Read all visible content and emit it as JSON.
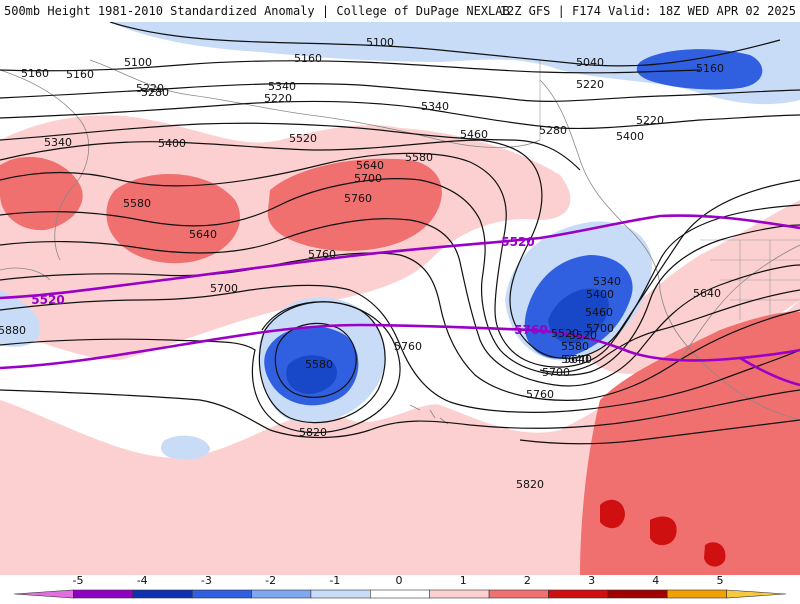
{
  "header": {
    "left_text": "500mb Height 1981-2010 Standardized Anomaly | College of DuPage NEXLAB",
    "right_text": "12Z GFS | F174 Valid: 18Z WED APR 02 2025"
  },
  "colorbar": {
    "ticks": [
      "-5",
      "-4",
      "-3",
      "-2",
      "-1",
      "0",
      "1",
      "2",
      "3",
      "4",
      "5"
    ],
    "colors": [
      "#e070e0",
      "#9000c0",
      "#1030b0",
      "#3060e0",
      "#80a8f0",
      "#c8dcf8",
      "#ffffff",
      "#fcd0d0",
      "#f07070",
      "#d01010",
      "#a00000",
      "#f0a000",
      "#f8c840"
    ]
  },
  "contour_labels": [
    "5100",
    "5160",
    "5160",
    "5100",
    "5040",
    "5160",
    "5220",
    "5280",
    "5340",
    "5220",
    "5340",
    "5220",
    "5280",
    "5400",
    "5460",
    "5340",
    "5400",
    "5520",
    "5580",
    "5640",
    "5700",
    "5760",
    "5580",
    "5640",
    "5700",
    "5760",
    "5640",
    "5520",
    "5340",
    "5400",
    "5460",
    "5520",
    "5580",
    "5640",
    "5700",
    "5760",
    "5820",
    "5820",
    "5880",
    "5580",
    "5640",
    "5760",
    "5700",
    "5160",
    "5220"
  ],
  "thick_contour_labels": [
    "5520",
    "5520",
    "5760"
  ],
  "colors": {
    "thick_contour": "#9a00c8",
    "contour": "#111111",
    "coast": "#888888"
  }
}
